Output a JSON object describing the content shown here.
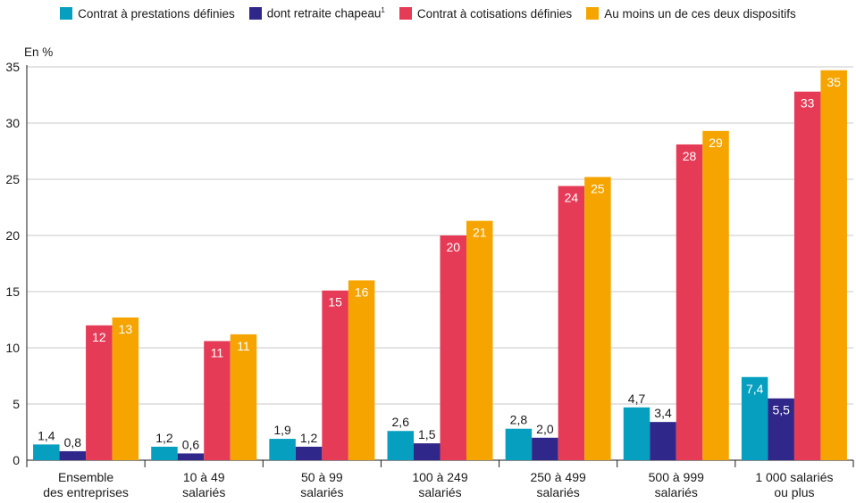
{
  "colors": {
    "prestations": "#069fbf",
    "chapeau": "#30278a",
    "cotisations": "#e63b57",
    "au_moins": "#f6a500",
    "grid": "#c8c8c8",
    "axis": "#1a1a1a"
  },
  "legend": [
    {
      "label": "Contrat à prestations définies",
      "sup": "",
      "color_key": "prestations"
    },
    {
      "label": "dont retraite chapeau",
      "sup": "1",
      "color_key": "chapeau"
    },
    {
      "label": "Contrat à cotisations définies",
      "sup": "",
      "color_key": "cotisations"
    },
    {
      "label": "Au moins un de ces deux dispositifs",
      "sup": "",
      "color_key": "au_moins"
    }
  ],
  "chart_data": {
    "type": "bar",
    "unit_label": "En %",
    "ylim": [
      0,
      35
    ],
    "yticks": [
      0,
      5,
      10,
      15,
      20,
      25,
      30,
      35
    ],
    "grid": true,
    "legend_position": "top",
    "categories": [
      [
        "Ensemble",
        "des entreprises"
      ],
      [
        "10 à 49",
        "salariés"
      ],
      [
        "50 à 99",
        "salariés"
      ],
      [
        "100 à 249",
        "salariés"
      ],
      [
        "250 à 499",
        "salariés"
      ],
      [
        "500 à 999",
        "salariés"
      ],
      [
        "1 000 salariés",
        "ou plus"
      ]
    ],
    "series": [
      {
        "name": "Contrat à prestations définies",
        "color_key": "prestations",
        "values": [
          1.4,
          1.2,
          1.9,
          2.6,
          2.8,
          4.7,
          7.4
        ],
        "labels": [
          "1,4",
          "1,2",
          "1,9",
          "2,6",
          "2,8",
          "4,7",
          "7,4"
        ]
      },
      {
        "name": "dont retraite chapeau",
        "color_key": "chapeau",
        "values": [
          0.8,
          0.6,
          1.2,
          1.5,
          2.0,
          3.4,
          5.5
        ],
        "labels": [
          "0,8",
          "0,6",
          "1,2",
          "1,5",
          "2,0",
          "3,4",
          "5,5"
        ]
      },
      {
        "name": "Contrat à cotisations définies",
        "color_key": "cotisations",
        "values": [
          12,
          10.6,
          15.1,
          20,
          24.4,
          28.1,
          32.8
        ],
        "labels": [
          "12",
          "11",
          "15",
          "20",
          "24",
          "28",
          "33"
        ]
      },
      {
        "name": "Au moins un de ces deux dispositifs",
        "color_key": "au_moins",
        "values": [
          12.7,
          11.2,
          16,
          21.3,
          25.2,
          29.3,
          34.7
        ],
        "labels": [
          "13",
          "11",
          "16",
          "21",
          "25",
          "29",
          "35"
        ]
      }
    ]
  }
}
